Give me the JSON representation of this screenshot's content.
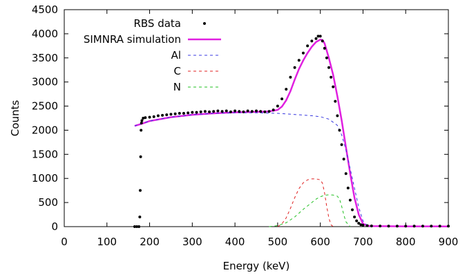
{
  "chart_data": {
    "type": "scatter",
    "title": "",
    "xlabel": "Energy (keV)",
    "ylabel": "Counts",
    "xlim": [
      0,
      900
    ],
    "ylim": [
      0,
      4500
    ],
    "xticks": [
      0,
      100,
      200,
      300,
      400,
      500,
      600,
      700,
      800,
      900
    ],
    "yticks": [
      0,
      500,
      1000,
      1500,
      2000,
      2500,
      3000,
      3500,
      4000,
      4500
    ],
    "grid": false,
    "legend_position": "top-left",
    "series": [
      {
        "name": "RBS data",
        "kind": "points",
        "color": "#000000",
        "x": [
          165,
          170,
          175,
          177,
          178,
          179,
          180,
          181,
          182,
          185,
          190,
          200,
          210,
          220,
          230,
          240,
          250,
          260,
          270,
          280,
          290,
          300,
          310,
          320,
          330,
          340,
          350,
          360,
          370,
          380,
          390,
          400,
          410,
          420,
          430,
          440,
          450,
          460,
          470,
          480,
          490,
          500,
          510,
          520,
          530,
          540,
          550,
          560,
          570,
          580,
          590,
          595,
          600,
          605,
          610,
          615,
          620,
          625,
          630,
          635,
          640,
          645,
          650,
          655,
          660,
          665,
          670,
          675,
          680,
          685,
          690,
          695,
          700,
          710,
          720,
          740,
          760,
          780,
          800,
          820,
          840,
          860,
          880,
          900
        ],
        "y": [
          0,
          0,
          0,
          200,
          750,
          1450,
          2000,
          2150,
          2200,
          2250,
          2260,
          2270,
          2280,
          2300,
          2310,
          2320,
          2330,
          2340,
          2350,
          2350,
          2360,
          2370,
          2370,
          2380,
          2390,
          2380,
          2390,
          2400,
          2390,
          2400,
          2380,
          2400,
          2390,
          2380,
          2400,
          2390,
          2400,
          2390,
          2380,
          2390,
          2420,
          2500,
          2650,
          2850,
          3100,
          3300,
          3450,
          3600,
          3750,
          3850,
          3900,
          3950,
          3950,
          3850,
          3700,
          3500,
          3300,
          3100,
          2900,
          2600,
          2300,
          2000,
          1700,
          1400,
          1100,
          800,
          550,
          350,
          200,
          120,
          70,
          40,
          30,
          20,
          15,
          12,
          10,
          10,
          10,
          10,
          10,
          10,
          10,
          10
        ]
      },
      {
        "name": "SIMNRA simulation",
        "kind": "line",
        "color": "#e020e0",
        "dash": "none",
        "x": [
          165,
          180,
          200,
          250,
          300,
          350,
          400,
          450,
          480,
          500,
          510,
          520,
          530,
          540,
          550,
          560,
          570,
          580,
          590,
          600,
          605,
          610,
          620,
          630,
          640,
          650,
          660,
          670,
          680,
          690,
          700,
          710,
          720,
          750,
          800,
          900
        ],
        "y": [
          2090,
          2130,
          2190,
          2270,
          2320,
          2350,
          2370,
          2380,
          2390,
          2420,
          2490,
          2620,
          2810,
          3050,
          3270,
          3450,
          3600,
          3730,
          3830,
          3880,
          3870,
          3800,
          3500,
          3150,
          2700,
          2200,
          1650,
          1100,
          600,
          250,
          60,
          20,
          10,
          8,
          6,
          5
        ]
      },
      {
        "name": "Al",
        "kind": "line",
        "color": "#3838e0",
        "dash": "dashed",
        "x": [
          165,
          200,
          250,
          300,
          350,
          400,
          450,
          500,
          550,
          580,
          600,
          620,
          640,
          650,
          660,
          670,
          680,
          690,
          700,
          710,
          720
        ],
        "y": [
          2090,
          2190,
          2270,
          2320,
          2350,
          2360,
          2360,
          2350,
          2320,
          2300,
          2280,
          2230,
          2100,
          1900,
          1600,
          1200,
          800,
          400,
          120,
          20,
          0
        ]
      },
      {
        "name": "C",
        "kind": "line",
        "color": "#e02020",
        "dash": "dashed",
        "x": [
          500,
          510,
          520,
          530,
          540,
          550,
          560,
          570,
          580,
          590,
          600,
          605,
          610,
          615,
          620,
          625,
          630
        ],
        "y": [
          0,
          60,
          180,
          380,
          600,
          790,
          910,
          970,
          990,
          990,
          970,
          900,
          700,
          420,
          180,
          40,
          0
        ]
      },
      {
        "name": "N",
        "kind": "line",
        "color": "#20c020",
        "dash": "dashed",
        "x": [
          480,
          500,
          520,
          540,
          560,
          580,
          590,
          600,
          610,
          620,
          630,
          640,
          645,
          650,
          655,
          660,
          670
        ],
        "y": [
          0,
          20,
          80,
          200,
          360,
          500,
          570,
          620,
          650,
          660,
          655,
          630,
          570,
          420,
          250,
          100,
          0
        ]
      }
    ]
  }
}
